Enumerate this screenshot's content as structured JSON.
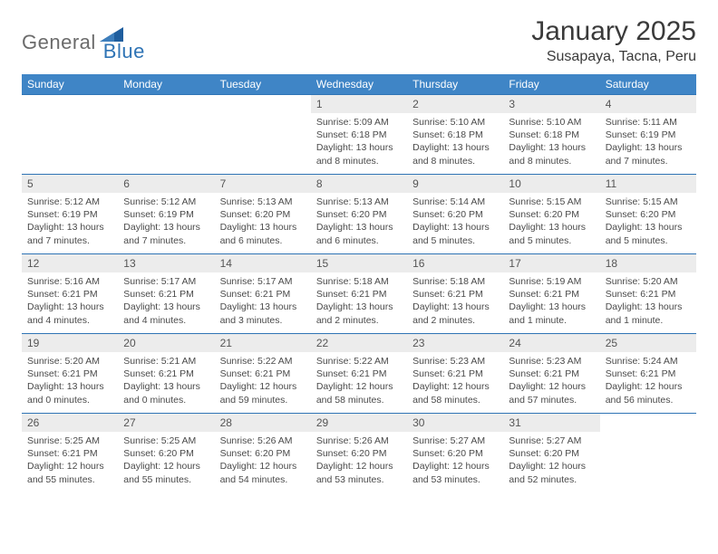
{
  "brand": {
    "general": "General",
    "blue": "Blue"
  },
  "header": {
    "month_title": "January 2025",
    "location": "Susapaya, Tacna, Peru"
  },
  "colors": {
    "header_bg": "#3f85c6",
    "header_text": "#ffffff",
    "daynum_bg": "#ececec",
    "row_border": "#2f74b5",
    "brand_gray": "#6b6b6b",
    "brand_blue": "#2f74b5",
    "logo_tri": "#1f5e9e"
  },
  "weekdays": [
    "Sunday",
    "Monday",
    "Tuesday",
    "Wednesday",
    "Thursday",
    "Friday",
    "Saturday"
  ],
  "weeks": [
    [
      {
        "n": "",
        "sr": "",
        "ss": "",
        "dl": ""
      },
      {
        "n": "",
        "sr": "",
        "ss": "",
        "dl": ""
      },
      {
        "n": "",
        "sr": "",
        "ss": "",
        "dl": ""
      },
      {
        "n": "1",
        "sr": "5:09 AM",
        "ss": "6:18 PM",
        "dl": "13 hours and 8 minutes."
      },
      {
        "n": "2",
        "sr": "5:10 AM",
        "ss": "6:18 PM",
        "dl": "13 hours and 8 minutes."
      },
      {
        "n": "3",
        "sr": "5:10 AM",
        "ss": "6:18 PM",
        "dl": "13 hours and 8 minutes."
      },
      {
        "n": "4",
        "sr": "5:11 AM",
        "ss": "6:19 PM",
        "dl": "13 hours and 7 minutes."
      }
    ],
    [
      {
        "n": "5",
        "sr": "5:12 AM",
        "ss": "6:19 PM",
        "dl": "13 hours and 7 minutes."
      },
      {
        "n": "6",
        "sr": "5:12 AM",
        "ss": "6:19 PM",
        "dl": "13 hours and 7 minutes."
      },
      {
        "n": "7",
        "sr": "5:13 AM",
        "ss": "6:20 PM",
        "dl": "13 hours and 6 minutes."
      },
      {
        "n": "8",
        "sr": "5:13 AM",
        "ss": "6:20 PM",
        "dl": "13 hours and 6 minutes."
      },
      {
        "n": "9",
        "sr": "5:14 AM",
        "ss": "6:20 PM",
        "dl": "13 hours and 5 minutes."
      },
      {
        "n": "10",
        "sr": "5:15 AM",
        "ss": "6:20 PM",
        "dl": "13 hours and 5 minutes."
      },
      {
        "n": "11",
        "sr": "5:15 AM",
        "ss": "6:20 PM",
        "dl": "13 hours and 5 minutes."
      }
    ],
    [
      {
        "n": "12",
        "sr": "5:16 AM",
        "ss": "6:21 PM",
        "dl": "13 hours and 4 minutes."
      },
      {
        "n": "13",
        "sr": "5:17 AM",
        "ss": "6:21 PM",
        "dl": "13 hours and 4 minutes."
      },
      {
        "n": "14",
        "sr": "5:17 AM",
        "ss": "6:21 PM",
        "dl": "13 hours and 3 minutes."
      },
      {
        "n": "15",
        "sr": "5:18 AM",
        "ss": "6:21 PM",
        "dl": "13 hours and 2 minutes."
      },
      {
        "n": "16",
        "sr": "5:18 AM",
        "ss": "6:21 PM",
        "dl": "13 hours and 2 minutes."
      },
      {
        "n": "17",
        "sr": "5:19 AM",
        "ss": "6:21 PM",
        "dl": "13 hours and 1 minute."
      },
      {
        "n": "18",
        "sr": "5:20 AM",
        "ss": "6:21 PM",
        "dl": "13 hours and 1 minute."
      }
    ],
    [
      {
        "n": "19",
        "sr": "5:20 AM",
        "ss": "6:21 PM",
        "dl": "13 hours and 0 minutes."
      },
      {
        "n": "20",
        "sr": "5:21 AM",
        "ss": "6:21 PM",
        "dl": "13 hours and 0 minutes."
      },
      {
        "n": "21",
        "sr": "5:22 AM",
        "ss": "6:21 PM",
        "dl": "12 hours and 59 minutes."
      },
      {
        "n": "22",
        "sr": "5:22 AM",
        "ss": "6:21 PM",
        "dl": "12 hours and 58 minutes."
      },
      {
        "n": "23",
        "sr": "5:23 AM",
        "ss": "6:21 PM",
        "dl": "12 hours and 58 minutes."
      },
      {
        "n": "24",
        "sr": "5:23 AM",
        "ss": "6:21 PM",
        "dl": "12 hours and 57 minutes."
      },
      {
        "n": "25",
        "sr": "5:24 AM",
        "ss": "6:21 PM",
        "dl": "12 hours and 56 minutes."
      }
    ],
    [
      {
        "n": "26",
        "sr": "5:25 AM",
        "ss": "6:21 PM",
        "dl": "12 hours and 55 minutes."
      },
      {
        "n": "27",
        "sr": "5:25 AM",
        "ss": "6:20 PM",
        "dl": "12 hours and 55 minutes."
      },
      {
        "n": "28",
        "sr": "5:26 AM",
        "ss": "6:20 PM",
        "dl": "12 hours and 54 minutes."
      },
      {
        "n": "29",
        "sr": "5:26 AM",
        "ss": "6:20 PM",
        "dl": "12 hours and 53 minutes."
      },
      {
        "n": "30",
        "sr": "5:27 AM",
        "ss": "6:20 PM",
        "dl": "12 hours and 53 minutes."
      },
      {
        "n": "31",
        "sr": "5:27 AM",
        "ss": "6:20 PM",
        "dl": "12 hours and 52 minutes."
      },
      {
        "n": "",
        "sr": "",
        "ss": "",
        "dl": ""
      }
    ]
  ],
  "labels": {
    "sunrise": "Sunrise: ",
    "sunset": "Sunset: ",
    "daylight": "Daylight: "
  }
}
